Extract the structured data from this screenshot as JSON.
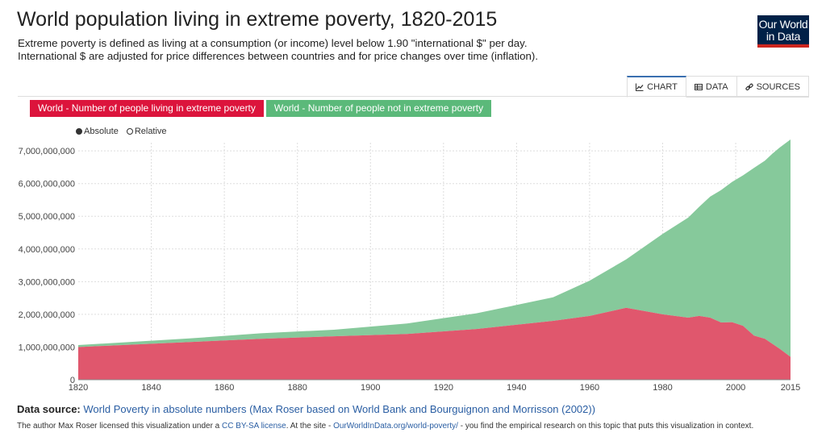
{
  "header": {
    "title": "World population living in extreme poverty, 1820-2015",
    "subtitle_line1": "Extreme poverty is defined as living at a consumption (or income) level below 1.90 \"international $\" per day.",
    "subtitle_line2": "International $ are adjusted for price differences between countries and for price changes over time (inflation).",
    "logo_line1": "Our World",
    "logo_line2": "in Data"
  },
  "tabs": [
    {
      "label": "CHART",
      "icon": "line-chart-icon",
      "active": true
    },
    {
      "label": "DATA",
      "icon": "table-icon",
      "active": false
    },
    {
      "label": "SOURCES",
      "icon": "link-icon",
      "active": false
    }
  ],
  "legend": [
    {
      "label": "World - Number of people living in extreme poverty",
      "color": "#dc143c"
    },
    {
      "label": "World - Number of people not in extreme poverty",
      "color": "#5bb97a"
    }
  ],
  "mode": {
    "absolute_label": "Absolute",
    "relative_label": "Relative",
    "selected": "absolute"
  },
  "chart_data": {
    "type": "area",
    "stacked": true,
    "title": "World population living in extreme poverty, 1820-2015",
    "xlabel": "",
    "ylabel": "",
    "xlim": [
      1820,
      2015
    ],
    "ylim": [
      0,
      7000000000
    ],
    "x_ticks": [
      1820,
      1840,
      1860,
      1880,
      1900,
      1920,
      1940,
      1960,
      1980,
      2000,
      2015
    ],
    "y_ticks": [
      0,
      1000000000,
      2000000000,
      3000000000,
      4000000000,
      5000000000,
      6000000000,
      7000000000
    ],
    "y_tick_labels": [
      "0",
      "1,000,000,000",
      "2,000,000,000",
      "3,000,000,000",
      "4,000,000,000",
      "5,000,000,000",
      "6,000,000,000",
      "7,000,000,000"
    ],
    "series": [
      {
        "name": "World - Number of people living in extreme poverty",
        "color": "#e0576d",
        "x": [
          1820,
          1850,
          1870,
          1890,
          1910,
          1929,
          1950,
          1960,
          1970,
          1980,
          1987,
          1990,
          1993,
          1996,
          1999,
          2002,
          2005,
          2008,
          2010,
          2012,
          2015
        ],
        "values": [
          1000000000,
          1150000000,
          1250000000,
          1330000000,
          1400000000,
          1550000000,
          1800000000,
          1950000000,
          2200000000,
          2000000000,
          1900000000,
          1950000000,
          1900000000,
          1750000000,
          1760000000,
          1650000000,
          1350000000,
          1250000000,
          1100000000,
          950000000,
          700000000
        ]
      },
      {
        "name": "World - Number of people not in extreme poverty",
        "color": "#86c99b",
        "x": [
          1820,
          1850,
          1870,
          1890,
          1910,
          1929,
          1950,
          1960,
          1970,
          1980,
          1987,
          1990,
          1993,
          1996,
          1999,
          2002,
          2005,
          2008,
          2010,
          2012,
          2015
        ],
        "values": [
          60000000,
          110000000,
          170000000,
          200000000,
          320000000,
          480000000,
          720000000,
          1080000000,
          1480000000,
          2460000000,
          3060000000,
          3340000000,
          3700000000,
          4050000000,
          4290000000,
          4600000000,
          5130000000,
          5450000000,
          5810000000,
          6150000000,
          6650000000
        ]
      }
    ]
  },
  "footer": {
    "source_label": "Data source:",
    "source_link": "World Poverty in absolute numbers (Max Roser based on World Bank and Bourguignon and Morrisson (2002))",
    "license_pre": "The author Max Roser licensed this visualization under a ",
    "license_link": "CC BY-SA license",
    "license_mid": ". At the site - ",
    "site_link": "OurWorldInData.org/world-poverty/",
    "license_post": " - you find the empirical research on this topic that puts this visualization in context."
  }
}
